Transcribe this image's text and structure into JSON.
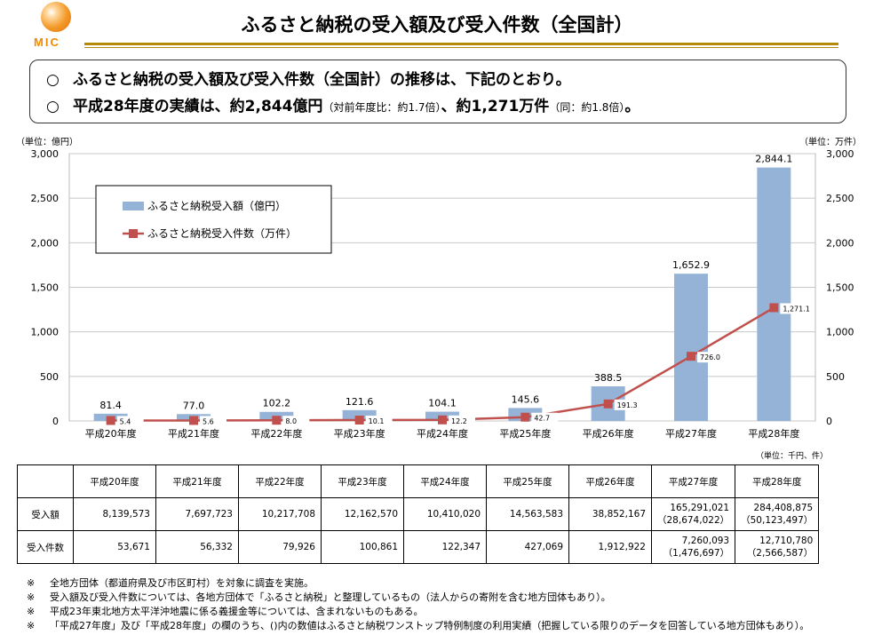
{
  "logo": {
    "text": "MIC"
  },
  "page_title": "ふるさと納税の受入額及び受入件数（全国計）",
  "summary": {
    "bullet": "○",
    "line1": "ふるさと納税の受入額及び受入件数（全国計）の推移は、下記のとおり。",
    "line2_a": "平成28年度の実績は、約2,844億円",
    "line2_b": "（対前年度比：約1.7倍）",
    "line2_c": "、約1,271万件",
    "line2_d": "（同：約1.8倍）",
    "line2_e": "。"
  },
  "chart_data": {
    "type": "bar",
    "categories": [
      "平成20年度",
      "平成21年度",
      "平成22年度",
      "平成23年度",
      "平成24年度",
      "平成25年度",
      "平成26年度",
      "平成27年度",
      "平成28年度"
    ],
    "series": [
      {
        "name": "ふるさと納税受入額（億円）",
        "kind": "bar",
        "axis": "left",
        "color": "#95b3d7",
        "values": [
          81.4,
          77.0,
          102.2,
          121.6,
          104.1,
          145.6,
          388.5,
          1652.9,
          2844.1
        ],
        "labels": [
          "81.4",
          "77.0",
          "102.2",
          "121.6",
          "104.1",
          "145.6",
          "388.5",
          "1,652.9",
          "2,844.1"
        ]
      },
      {
        "name": "ふるさと納税受入件数（万件）",
        "kind": "line",
        "axis": "right",
        "color": "#c0504d",
        "values": [
          5.4,
          5.6,
          8.0,
          10.1,
          12.2,
          42.7,
          191.3,
          726.0,
          1271.1
        ],
        "labels": [
          "5.4",
          "5.6",
          "8.0",
          "10.1",
          "12.2",
          "42.7",
          "191.3",
          "726.0",
          "1,271.1"
        ]
      }
    ],
    "ylim": [
      0,
      3000
    ],
    "y2lim": [
      0,
      3000
    ],
    "yticks": [
      "0",
      "500",
      "1,000",
      "1,500",
      "2,000",
      "2,500",
      "3,000"
    ],
    "ylabel": "（単位：億円）",
    "y2label": "（単位：万件）",
    "grid": true,
    "legend_position": "top-left"
  },
  "table": {
    "unit": "（単位：千円、件）",
    "headers": [
      "平成20年度",
      "平成21年度",
      "平成22年度",
      "平成23年度",
      "平成24年度",
      "平成25年度",
      "平成26年度",
      "平成27年度",
      "平成28年度"
    ],
    "rows": [
      {
        "label": "受入額",
        "cells": [
          "8,139,573",
          "7,697,723",
          "10,217,708",
          "12,162,570",
          "10,410,020",
          "14,563,583",
          "38,852,167",
          "165,291,021",
          "284,408,875"
        ],
        "sub": [
          "",
          "",
          "",
          "",
          "",
          "",
          "",
          "（28,674,022）",
          "（50,123,497）"
        ]
      },
      {
        "label": "受入件数",
        "cells": [
          "53,671",
          "56,332",
          "79,926",
          "100,861",
          "122,347",
          "427,069",
          "1,912,922",
          "7,260,093",
          "12,710,780"
        ],
        "sub": [
          "",
          "",
          "",
          "",
          "",
          "",
          "",
          "（1,476,697）",
          "（2,566,587）"
        ]
      }
    ]
  },
  "notes": [
    {
      "mark": "※",
      "text": "全地方団体（都道府県及び市区町村）を対象に調査を実施。"
    },
    {
      "mark": "※",
      "text": "受入額及び受入件数については、各地方団体で「ふるさと納税」と整理しているもの（法人からの寄附を含む地方団体もあり）。"
    },
    {
      "mark": "※",
      "text": "平成23年東北地方太平洋沖地震に係る義援金等については、含まれないものもある。"
    },
    {
      "mark": "※",
      "text": "「平成27年度」及び「平成28年度」の欄のうち、()内の数値はふるさと納税ワンストップ特例制度の利用実績（把握している限りのデータを回答している地方団体もあり）。"
    }
  ]
}
